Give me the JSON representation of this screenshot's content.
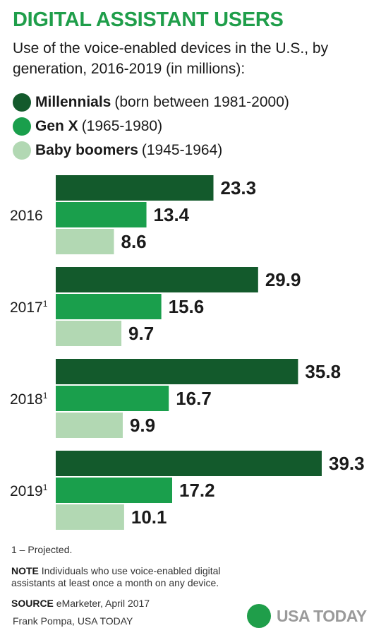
{
  "header": {
    "title": "DIGITAL ASSISTANT USERS",
    "subtitle": "Use of the voice-enabled devices in the U.S., by generation, 2016-2019 (in millions):"
  },
  "legend": [
    {
      "name": "Millennials",
      "range": "(born between 1981-2000)",
      "color": "#135a2c"
    },
    {
      "name": "Gen X",
      "range": "(1965-1980)",
      "color": "#1a9f4c"
    },
    {
      "name": "Baby boomers",
      "range": "(1945-1964)",
      "color": "#b2d8b3"
    }
  ],
  "chart_data": {
    "type": "bar",
    "orientation": "horizontal",
    "categories": [
      "2016",
      "2017",
      "2018",
      "2019"
    ],
    "category_superscripts": [
      "",
      "1",
      "1",
      "1"
    ],
    "series": [
      {
        "name": "Millennials",
        "values": [
          23.3,
          29.9,
          35.8,
          39.3
        ],
        "color": "#135a2c"
      },
      {
        "name": "Gen X",
        "values": [
          13.4,
          15.6,
          16.7,
          17.2
        ],
        "color": "#1a9f4c"
      },
      {
        "name": "Baby boomers",
        "values": [
          8.6,
          9.7,
          9.9,
          10.1
        ],
        "color": "#b2d8b3"
      }
    ],
    "value_labels": [
      [
        "23.3",
        "29.9",
        "35.8",
        "39.3"
      ],
      [
        "13.4",
        "15.6",
        "16.7",
        "17.2"
      ],
      [
        "8.6",
        "9.7",
        "9.9",
        "10.1"
      ]
    ],
    "xlim": [
      0,
      39.3
    ],
    "grid": false
  },
  "footer": {
    "footnote": "1 – Projected.",
    "note_label": "NOTE",
    "note_text": "Individuals who use voice-enabled digital assistants at least once a month on any device.",
    "source_label": "SOURCE",
    "source_text": "eMarketer, April 2017",
    "credit": "Frank Pompa, USA TODAY",
    "logo_text": "USA TODAY"
  }
}
